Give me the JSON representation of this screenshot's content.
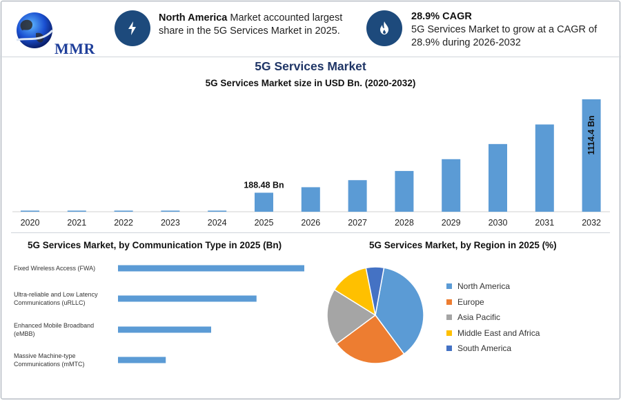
{
  "header": {
    "logo_text": "MMR",
    "fact1": {
      "icon": "lightning-icon",
      "bold": "North America",
      "text": " Market accounted largest share in the 5G Services Market in 2025."
    },
    "fact2": {
      "icon": "flame-icon",
      "bold": "28.9% CAGR",
      "text": "5G Services Market to grow at a CAGR of 28.9% during 2026-2032"
    }
  },
  "title": "5G Services Market",
  "colors": {
    "bar": "#5b9bd5",
    "badge": "#1d4a7c",
    "title": "#1f3566"
  },
  "chart_data": [
    {
      "type": "bar",
      "title": "5G Services Market size in USD Bn. (2020-2032)",
      "categories": [
        "2020",
        "2021",
        "2022",
        "2023",
        "2024",
        "2025",
        "2026",
        "2027",
        "2028",
        "2029",
        "2030",
        "2031",
        "2032"
      ],
      "values": [
        11,
        11,
        11,
        11,
        11,
        188.48,
        243,
        313,
        404,
        521,
        671,
        865,
        1114.4
      ],
      "annotations": [
        {
          "category": "2025",
          "label": "188.48 Bn"
        },
        {
          "category": "2032",
          "label": "1114.4 Bn"
        }
      ],
      "grid": false
    },
    {
      "type": "bar",
      "orientation": "horizontal",
      "title": "5G Services Market, by Communication Type in 2025 (Bn)",
      "categories": [
        "Fixed Wireless Access (FWA)",
        "Ultra-reliable and Low Latency Communications (uRLLC)",
        "Enhanced Mobile Broadband (eMBB)",
        "Massive Machine-type Communications (mMTC)"
      ],
      "category_lines": [
        [
          "Fixed Wireless Access (FWA)"
        ],
        [
          "Ultra-reliable and Low Latency",
          "Communications (uRLLC)"
        ],
        [
          "Enhanced Mobile Broadband",
          "(eMBB)"
        ],
        [
          "Massive Machine-type",
          "Communications (mMTC)"
        ]
      ],
      "values": [
        78,
        58,
        39,
        20
      ]
    },
    {
      "type": "pie",
      "title": "5G Services Market, by Region in 2025 (%)",
      "labels": [
        "North America",
        "Europe",
        "Asia Pacific",
        "Middle East and Africa",
        "South America"
      ],
      "values": [
        37,
        25,
        19,
        13,
        6
      ],
      "colors": [
        "#5b9bd5",
        "#ed7d31",
        "#a5a5a5",
        "#ffc000",
        "#4472c4"
      ],
      "legend_position": "right"
    }
  ]
}
